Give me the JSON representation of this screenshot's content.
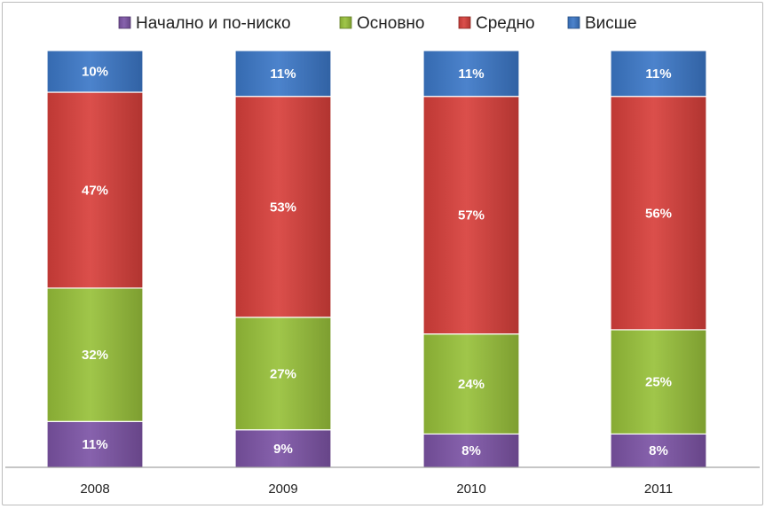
{
  "chart_data": {
    "type": "bar",
    "stacked": true,
    "percent": true,
    "categories": [
      "2008",
      "2009",
      "2010",
      "2011"
    ],
    "series": [
      {
        "name": "Начално и по-ниско",
        "color": "#7d54a6",
        "values": [
          11,
          9,
          8,
          8
        ],
        "labels": [
          "11%",
          "9%",
          "8%",
          "8%"
        ]
      },
      {
        "name": "Основно",
        "color": "#98c13a",
        "values": [
          32,
          27,
          24,
          25
        ],
        "labels": [
          "32%",
          "27%",
          "24%",
          "25%"
        ]
      },
      {
        "name": "Средно",
        "color": "#d8403b",
        "values": [
          47,
          53,
          57,
          56
        ],
        "labels": [
          "47%",
          "53%",
          "57%",
          "56%"
        ]
      },
      {
        "name": "Висше",
        "color": "#3c78c8",
        "values": [
          10,
          11,
          11,
          11
        ],
        "labels": [
          "10%",
          "11%",
          "11%",
          "11%"
        ]
      }
    ],
    "title": "",
    "xlabel": "",
    "ylabel": "",
    "ylim": [
      0,
      100
    ],
    "grid": false,
    "legend_position": "top"
  }
}
